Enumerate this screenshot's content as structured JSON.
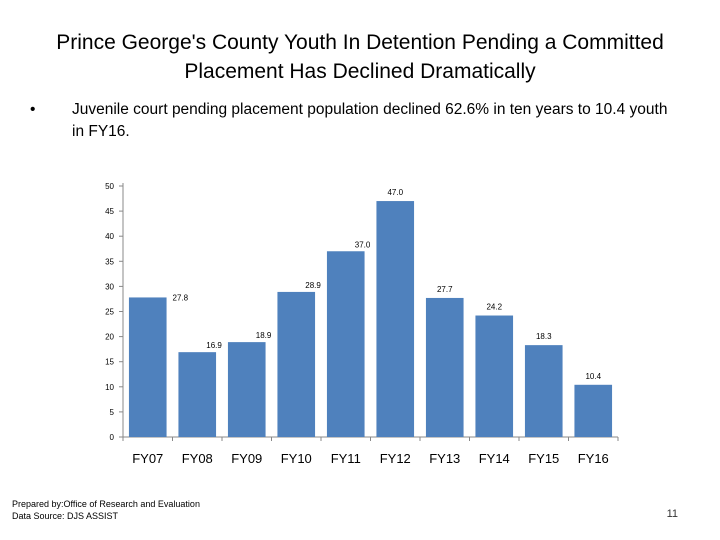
{
  "slide": {
    "title": "Prince George's County Youth In Detention Pending a Committed Placement Has Declined Dramatically",
    "bullet": "Juvenile court pending placement population declined 62.6% in ten years to 10.4 youth in FY16.",
    "bullet_symbol": "•",
    "footer_line1": "Prepared by:Office of Research and Evaluation",
    "footer_line2": "Data Source: DJS ASSIST",
    "page_number": "11"
  },
  "chart_data": {
    "type": "bar",
    "title": "",
    "xlabel": "",
    "ylabel": "",
    "categories": [
      "FY07",
      "FY08",
      "FY09",
      "FY10",
      "FY11",
      "FY12",
      "FY13",
      "FY14",
      "FY15",
      "FY16"
    ],
    "values": [
      27.8,
      16.9,
      18.9,
      28.9,
      37.0,
      47.0,
      27.7,
      24.2,
      18.3,
      10.4
    ],
    "data_labels": [
      "27.8",
      "16.9",
      "18.9",
      "28.9",
      "37.0",
      "47.0",
      "27.7",
      "24.2",
      "18.3",
      "10.4"
    ],
    "yticks": [
      0,
      5,
      10,
      15,
      20,
      25,
      30,
      35,
      40,
      45,
      50
    ],
    "ylim": [
      0,
      50
    ],
    "grid": false,
    "bar_color": "#4F81BD"
  }
}
